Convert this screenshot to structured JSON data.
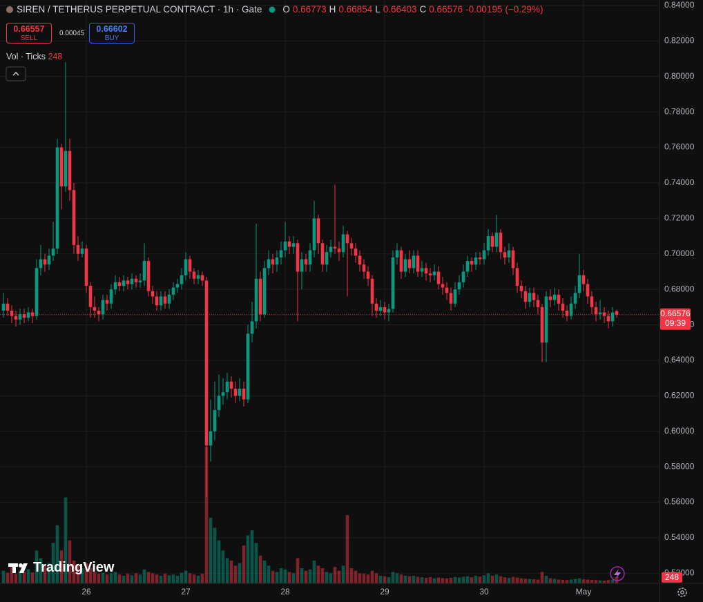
{
  "header": {
    "title": "SIREN / TETHERUS PERPETUAL CONTRACT · 1h · Gate",
    "ohlc_keys": [
      "O",
      "H",
      "L",
      "C"
    ],
    "change": -0.00195,
    "change_pct": {
      "value": -0.29,
      "label": "(−0.29%)"
    }
  },
  "trade": {
    "sell_price": 0.66557,
    "sell_label": "SELL",
    "spread": 0.00045,
    "buy_price": 0.66602,
    "buy_label": "BUY"
  },
  "volume_legend": "Vol · Ticks",
  "logo": "TradingView",
  "chart_data": {
    "type": "candlestick",
    "categories": [
      null,
      null,
      null,
      null,
      null,
      null,
      null,
      null,
      null,
      null,
      null,
      null,
      null,
      null,
      null,
      null,
      null,
      null,
      null,
      null,
      "26",
      null,
      null,
      null,
      null,
      null,
      null,
      null,
      null,
      null,
      null,
      null,
      null,
      null,
      null,
      null,
      null,
      null,
      null,
      null,
      null,
      null,
      null,
      null,
      "27",
      null,
      null,
      null,
      null,
      null,
      null,
      null,
      null,
      null,
      null,
      null,
      null,
      null,
      null,
      null,
      null,
      null,
      null,
      null,
      null,
      null,
      null,
      null,
      "28",
      null,
      null,
      null,
      null,
      null,
      null,
      null,
      null,
      null,
      null,
      null,
      null,
      null,
      null,
      null,
      null,
      null,
      null,
      null,
      null,
      null,
      null,
      null,
      "29",
      null,
      null,
      null,
      null,
      null,
      null,
      null,
      null,
      null,
      null,
      null,
      null,
      null,
      null,
      null,
      null,
      null,
      null,
      null,
      null,
      null,
      null,
      null,
      "30",
      null,
      null,
      null,
      null,
      null,
      null,
      null,
      null,
      null,
      null,
      null,
      null,
      null,
      null,
      null,
      null,
      null,
      null,
      null,
      null,
      null,
      null,
      null,
      "May",
      null,
      null,
      null,
      null,
      null,
      null,
      null,
      null
    ],
    "open": [
      0.668,
      0.672,
      0.668,
      0.665,
      0.663,
      0.666,
      0.664,
      0.667,
      0.665,
      0.692,
      0.697,
      0.694,
      0.699,
      0.703,
      0.76,
      0.738,
      0.758,
      0.736,
      0.705,
      0.7,
      0.703,
      0.682,
      0.67,
      0.668,
      0.666,
      0.674,
      0.672,
      0.68,
      0.684,
      0.682,
      0.685,
      0.683,
      0.686,
      0.684,
      0.685,
      0.696,
      0.679,
      0.676,
      0.671,
      0.676,
      0.672,
      0.677,
      0.681,
      0.683,
      0.688,
      0.697,
      0.69,
      0.686,
      0.688,
      0.685,
      0.592,
      0.6,
      0.612,
      0.62,
      0.622,
      0.628,
      0.624,
      0.62,
      0.624,
      0.618,
      0.655,
      0.662,
      0.686,
      0.666,
      0.692,
      0.697,
      0.694,
      0.698,
      0.702,
      0.707,
      0.704,
      0.706,
      0.69,
      0.697,
      0.694,
      0.702,
      0.72,
      0.706,
      0.694,
      0.701,
      0.704,
      0.703,
      0.701,
      0.711,
      0.706,
      0.703,
      0.699,
      0.694,
      0.69,
      0.686,
      0.672,
      0.668,
      0.67,
      0.667,
      0.669,
      0.698,
      0.702,
      0.69,
      0.697,
      0.692,
      0.699,
      0.69,
      0.692,
      0.689,
      0.688,
      0.69,
      0.683,
      0.681,
      0.678,
      0.672,
      0.68,
      0.684,
      0.69,
      0.696,
      0.694,
      0.698,
      0.697,
      0.702,
      0.71,
      0.704,
      0.712,
      0.701,
      0.698,
      0.702,
      0.692,
      0.682,
      0.679,
      0.673,
      0.678,
      0.674,
      0.67,
      0.65,
      0.676,
      0.674,
      0.677,
      0.672,
      0.668,
      0.665,
      0.672,
      0.678,
      0.688,
      0.683,
      0.676,
      0.67,
      0.666,
      0.667,
      0.665,
      0.662,
      0.66773
    ],
    "high": [
      0.678,
      0.675,
      0.671,
      0.668,
      0.669,
      0.669,
      0.67,
      0.669,
      0.697,
      0.705,
      0.7,
      0.703,
      0.718,
      0.765,
      0.762,
      0.808,
      0.765,
      0.74,
      0.71,
      0.707,
      0.705,
      0.684,
      0.676,
      0.67,
      0.677,
      0.677,
      0.683,
      0.688,
      0.687,
      0.688,
      0.687,
      0.689,
      0.688,
      0.689,
      0.706,
      0.698,
      0.682,
      0.679,
      0.679,
      0.679,
      0.68,
      0.684,
      0.686,
      0.692,
      0.701,
      0.699,
      0.692,
      0.691,
      0.69,
      0.687,
      0.618,
      0.628,
      0.632,
      0.63,
      0.633,
      0.631,
      0.628,
      0.63,
      0.628,
      0.66,
      0.673,
      0.717,
      0.69,
      0.696,
      0.702,
      0.7,
      0.702,
      0.707,
      0.718,
      0.71,
      0.71,
      0.708,
      0.701,
      0.7,
      0.706,
      0.73,
      0.722,
      0.708,
      0.705,
      0.708,
      0.739,
      0.707,
      0.716,
      0.713,
      0.709,
      0.706,
      0.702,
      0.697,
      0.693,
      0.688,
      0.675,
      0.674,
      0.673,
      0.672,
      0.702,
      0.706,
      0.704,
      0.7,
      0.702,
      0.702,
      0.702,
      0.696,
      0.695,
      0.692,
      0.694,
      0.693,
      0.687,
      0.684,
      0.681,
      0.684,
      0.688,
      0.694,
      0.699,
      0.698,
      0.701,
      0.701,
      0.706,
      0.714,
      0.712,
      0.722,
      0.714,
      0.704,
      0.706,
      0.704,
      0.695,
      0.685,
      0.682,
      0.681,
      0.681,
      0.677,
      0.672,
      0.679,
      0.68,
      0.681,
      0.68,
      0.675,
      0.671,
      0.676,
      0.682,
      0.7,
      0.691,
      0.686,
      0.679,
      0.673,
      0.674,
      0.67,
      0.668,
      0.67,
      0.66854
    ],
    "low": [
      0.664,
      0.665,
      0.661,
      0.659,
      0.66,
      0.661,
      0.662,
      0.661,
      0.663,
      0.688,
      0.69,
      0.691,
      0.696,
      0.7,
      0.725,
      0.735,
      0.73,
      0.7,
      0.696,
      0.698,
      0.678,
      0.664,
      0.664,
      0.662,
      0.663,
      0.668,
      0.669,
      0.677,
      0.679,
      0.679,
      0.68,
      0.68,
      0.681,
      0.681,
      0.682,
      0.676,
      0.672,
      0.668,
      0.668,
      0.669,
      0.669,
      0.674,
      0.678,
      0.68,
      0.685,
      0.686,
      0.683,
      0.683,
      0.682,
      0.563,
      0.583,
      0.595,
      0.608,
      0.615,
      0.618,
      0.619,
      0.616,
      0.617,
      0.614,
      0.616,
      0.65,
      0.658,
      0.662,
      0.664,
      0.688,
      0.689,
      0.69,
      0.694,
      0.698,
      0.7,
      0.7,
      0.662,
      0.68,
      0.69,
      0.69,
      0.698,
      0.7,
      0.69,
      0.69,
      0.698,
      0.7,
      0.696,
      0.698,
      0.676,
      0.699,
      0.695,
      0.69,
      0.686,
      0.682,
      0.665,
      0.664,
      0.665,
      0.663,
      0.662,
      0.667,
      0.694,
      0.686,
      0.687,
      0.689,
      0.689,
      0.687,
      0.687,
      0.685,
      0.684,
      0.685,
      0.68,
      0.677,
      0.674,
      0.668,
      0.67,
      0.677,
      0.681,
      0.687,
      0.69,
      0.691,
      0.694,
      0.694,
      0.699,
      0.701,
      0.701,
      0.697,
      0.694,
      0.695,
      0.688,
      0.678,
      0.675,
      0.669,
      0.67,
      0.67,
      0.666,
      0.639,
      0.639,
      0.67,
      0.671,
      0.668,
      0.664,
      0.662,
      0.663,
      0.669,
      0.675,
      0.679,
      0.672,
      0.666,
      0.662,
      0.663,
      0.661,
      0.658,
      0.659,
      0.66403
    ],
    "close": [
      0.672,
      0.668,
      0.665,
      0.663,
      0.666,
      0.664,
      0.667,
      0.665,
      0.692,
      0.697,
      0.694,
      0.699,
      0.703,
      0.76,
      0.738,
      0.758,
      0.736,
      0.705,
      0.7,
      0.703,
      0.682,
      0.67,
      0.668,
      0.666,
      0.674,
      0.672,
      0.68,
      0.684,
      0.682,
      0.685,
      0.683,
      0.686,
      0.684,
      0.685,
      0.696,
      0.679,
      0.676,
      0.671,
      0.676,
      0.672,
      0.677,
      0.681,
      0.683,
      0.688,
      0.697,
      0.69,
      0.686,
      0.688,
      0.685,
      0.592,
      0.6,
      0.612,
      0.62,
      0.622,
      0.628,
      0.624,
      0.62,
      0.624,
      0.618,
      0.655,
      0.662,
      0.686,
      0.666,
      0.692,
      0.697,
      0.694,
      0.698,
      0.702,
      0.707,
      0.704,
      0.706,
      0.69,
      0.697,
      0.694,
      0.702,
      0.72,
      0.706,
      0.694,
      0.701,
      0.704,
      0.703,
      0.701,
      0.711,
      0.706,
      0.703,
      0.699,
      0.694,
      0.69,
      0.686,
      0.672,
      0.668,
      0.67,
      0.667,
      0.669,
      0.698,
      0.702,
      0.69,
      0.697,
      0.692,
      0.699,
      0.69,
      0.692,
      0.689,
      0.688,
      0.69,
      0.683,
      0.681,
      0.678,
      0.672,
      0.68,
      0.684,
      0.69,
      0.696,
      0.694,
      0.698,
      0.697,
      0.702,
      0.71,
      0.704,
      0.712,
      0.701,
      0.698,
      0.702,
      0.692,
      0.682,
      0.679,
      0.673,
      0.678,
      0.674,
      0.67,
      0.65,
      0.676,
      0.674,
      0.677,
      0.672,
      0.668,
      0.665,
      0.672,
      0.678,
      0.688,
      0.683,
      0.676,
      0.67,
      0.666,
      0.667,
      0.665,
      0.662,
      0.667,
      0.66576
    ],
    "volume": [
      500,
      420,
      650,
      380,
      520,
      460,
      560,
      430,
      1300,
      1000,
      700,
      800,
      1600,
      2300,
      1300,
      3400,
      1700,
      900,
      700,
      600,
      800,
      600,
      450,
      380,
      420,
      350,
      400,
      450,
      350,
      300,
      380,
      320,
      400,
      350,
      550,
      450,
      400,
      350,
      300,
      380,
      320,
      350,
      300,
      420,
      500,
      400,
      350,
      300,
      380,
      5400,
      2600,
      2200,
      1700,
      1300,
      1000,
      900,
      700,
      800,
      1500,
      1900,
      2100,
      1600,
      1100,
      900,
      700,
      500,
      450,
      600,
      550,
      450,
      400,
      1000,
      600,
      500,
      550,
      900,
      700,
      600,
      450,
      400,
      650,
      500,
      700,
      2700,
      600,
      500,
      400,
      380,
      350,
      500,
      400,
      300,
      280,
      250,
      450,
      400,
      350,
      300,
      280,
      300,
      260,
      240,
      220,
      250,
      200,
      230,
      210,
      200,
      220,
      250,
      230,
      260,
      280,
      240,
      300,
      270,
      320,
      400,
      300,
      350,
      280,
      240,
      220,
      260,
      230,
      200,
      180,
      170,
      160,
      150,
      450,
      300,
      200,
      180,
      150,
      140,
      130,
      150,
      170,
      200,
      160,
      150,
      140,
      130,
      120,
      110,
      130,
      150,
      248
    ],
    "ylim": [
      0.5143,
      0.8431
    ],
    "yticks": [
      {
        "value": 0.84,
        "label": "0.84000"
      },
      {
        "value": 0.82,
        "label": "0.82000"
      },
      {
        "value": 0.8,
        "label": "0.80000"
      },
      {
        "value": 0.78,
        "label": "0.78000"
      },
      {
        "value": 0.76,
        "label": "0.76000"
      },
      {
        "value": 0.74,
        "label": "0.74000"
      },
      {
        "value": 0.72,
        "label": "0.72000"
      },
      {
        "value": 0.7,
        "label": "0.70000"
      },
      {
        "value": 0.68,
        "label": "0.68000"
      },
      {
        "value": 0.66,
        "label": "0.66000"
      },
      {
        "value": 0.64,
        "label": "0.64000"
      },
      {
        "value": 0.62,
        "label": "0.62000"
      },
      {
        "value": 0.6,
        "label": "0.60000"
      },
      {
        "value": 0.58,
        "label": "0.58000"
      },
      {
        "value": 0.56,
        "label": "0.56000"
      },
      {
        "value": 0.54,
        "label": "0.54000"
      },
      {
        "value": 0.52,
        "label": "0.52000"
      }
    ],
    "y2lim": [
      0,
      5600
    ],
    "countdown": "09:39",
    "grid": true,
    "up_color": "#089981",
    "down_color": "#f23645",
    "volume_up_color": "rgba(8,153,129,0.5)",
    "volume_down_color": "rgba(242,54,69,0.5)"
  }
}
